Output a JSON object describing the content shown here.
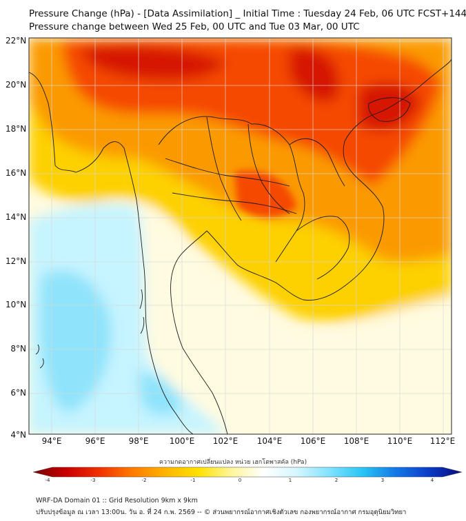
{
  "header": {
    "title_line1": "Pressure Change (hPa) - [Data Assimilation] _ Initial Time : Tuesday 24 Feb, 06 UTC FCST+144",
    "title_line2": "Pressure change between Wed 25 Feb, 00 UTC and Tue 03 Mar, 00 UTC"
  },
  "map": {
    "lon_range": [
      93,
      112.5
    ],
    "lat_range": [
      4,
      22.2
    ],
    "lat_labels": [
      "22°N",
      "20°N",
      "18°N",
      "16°N",
      "14°N",
      "12°N",
      "10°N",
      "8°N",
      "6°N",
      "4°N"
    ],
    "lon_labels": [
      "94°E",
      "96°E",
      "98°E",
      "100°E",
      "102°E",
      "104°E",
      "106°E",
      "108°E",
      "110°E",
      "112°E"
    ],
    "colors": {
      "strong_fall": "#d61400",
      "fall": "#f54a00",
      "moderate_fall": "#fb9a00",
      "slight_fall": "#fdd000",
      "weak_fall": "#fff06a",
      "neutral": "#fffbe0",
      "slight_rise": "#c6f4ff",
      "rise": "#8fe3fb"
    }
  },
  "colorbar": {
    "title": "ความกดอากาศเปลี่ยนแปลง หน่วย เฮกโตพาสคัล (hPa)",
    "tick_labels": [
      "-4",
      "-3",
      "-2",
      "-1",
      "0",
      "1",
      "2",
      "3",
      "4"
    ],
    "colors": [
      "#7a0000",
      "#c80000",
      "#f03000",
      "#ff7a00",
      "#ffb300",
      "#ffe100",
      "#fff59a",
      "#ffffff",
      "#d4f6ff",
      "#7fe2ff",
      "#28c4f5",
      "#1478e6",
      "#0a3cc8",
      "#0a0a7a"
    ]
  },
  "footer": {
    "line1": "WRF-DA Domain 01 :: Grid Resolution 9km x 9km",
    "line2": "ปรับปรุงข้อมูล ณ เวลา 13:00น. วัน อ. ที่ 24 ก.พ. 2569 -- © ส่วนพยากรณ์อากาศเชิงตัวเลข กองพยากรณ์อากาศ กรมอุตุนิยมวิทยา"
  }
}
